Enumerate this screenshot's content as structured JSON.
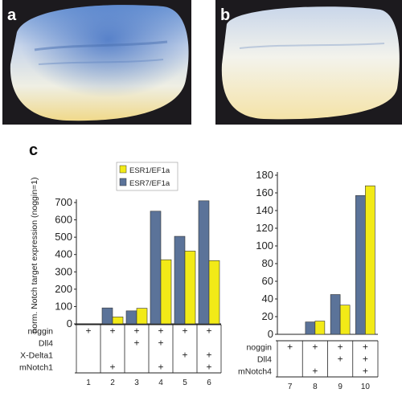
{
  "figure": {
    "panel_a": "a",
    "panel_b": "b",
    "panel_c": "c"
  },
  "colors": {
    "blue": "#5b7399",
    "yellow": "#f2ea17",
    "embryo_dark": "#1c1a1e"
  },
  "chart_data": [
    {
      "type": "bar",
      "ylabel": "norm. Notch target expression (noggin=1)",
      "ylim": [
        0,
        700
      ],
      "yticks": [
        0,
        100,
        200,
        300,
        400,
        500,
        600,
        700
      ],
      "legend": [
        "ESR1/EF1a",
        "ESR7/EF1a"
      ],
      "categories": [
        "1",
        "2",
        "3",
        "4",
        "5",
        "6"
      ],
      "series": [
        {
          "name": "ESR7/EF1a",
          "values": [
            0,
            92,
            75,
            650,
            505,
            710
          ]
        },
        {
          "name": "ESR1/EF1a",
          "values": [
            0,
            40,
            90,
            370,
            420,
            365
          ]
        }
      ],
      "conditions": [
        {
          "label": "noggin",
          "marks": [
            "+",
            "+",
            "+",
            "+",
            "+",
            "+"
          ]
        },
        {
          "label": "Dll4",
          "marks": [
            "",
            "",
            "+",
            "+",
            "",
            ""
          ]
        },
        {
          "label": "X-Delta1",
          "marks": [
            "",
            "",
            "",
            "",
            "+",
            "+"
          ]
        },
        {
          "label": "mNotch1",
          "marks": [
            "",
            "+",
            "",
            "+",
            "",
            "+"
          ]
        }
      ]
    },
    {
      "type": "bar",
      "ylim": [
        0,
        180
      ],
      "yticks": [
        0,
        20,
        40,
        60,
        80,
        100,
        120,
        140,
        160,
        180
      ],
      "categories": [
        "7",
        "8",
        "9",
        "10"
      ],
      "series": [
        {
          "name": "ESR7/EF1a",
          "values": [
            0,
            14,
            45,
            157
          ]
        },
        {
          "name": "ESR1/EF1a",
          "values": [
            0,
            15,
            33,
            168
          ]
        }
      ],
      "conditions": [
        {
          "label": "noggin",
          "marks": [
            "+",
            "+",
            "+",
            "+"
          ]
        },
        {
          "label": "Dll4",
          "marks": [
            "",
            "",
            "+",
            "+"
          ]
        },
        {
          "label": "mNotch4",
          "marks": [
            "",
            "+",
            "",
            "+"
          ]
        }
      ]
    }
  ]
}
